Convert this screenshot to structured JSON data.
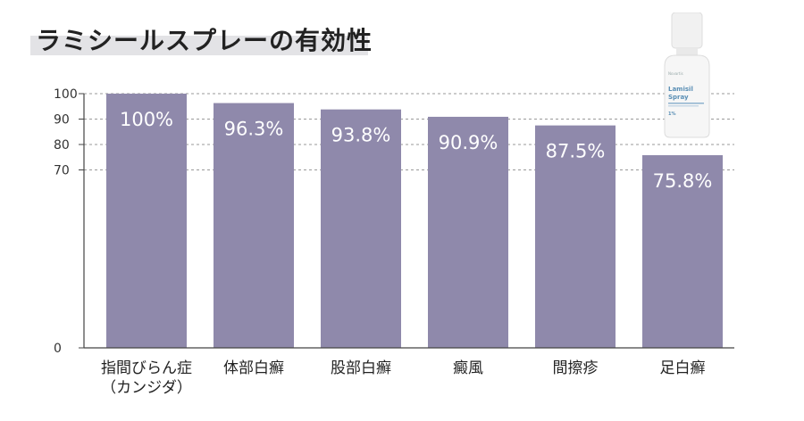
{
  "title": "ラミシールスプレーの有効性",
  "colors": {
    "bar": "#8f89ab",
    "axis": "#444444",
    "grid": "#9a9a9a",
    "title_highlight": "#e3e3e6",
    "value_label": "#ffffff"
  },
  "product_image": {
    "brand": "Lamisil",
    "name": "Spray",
    "strength": "1%"
  },
  "chart_data": {
    "type": "bar",
    "title": "ラミシールスプレーの有効性",
    "categories": [
      [
        "指間びらん症",
        "（カンジダ）"
      ],
      [
        "体部白癬"
      ],
      [
        "股部白癬"
      ],
      [
        "癜風"
      ],
      [
        "間擦疹"
      ],
      [
        "足白癬"
      ]
    ],
    "values": [
      100,
      96.3,
      93.8,
      90.9,
      87.5,
      75.8
    ],
    "value_labels": [
      "100%",
      "96.3%",
      "93.8%",
      "90.9%",
      "87.5%",
      "75.8%"
    ],
    "yticks": [
      0,
      70,
      80,
      90,
      100
    ],
    "ylim": [
      0,
      100
    ],
    "gridlines": [
      70,
      80,
      90,
      100
    ],
    "grid": "dashed",
    "xlabel": "",
    "ylabel": ""
  }
}
